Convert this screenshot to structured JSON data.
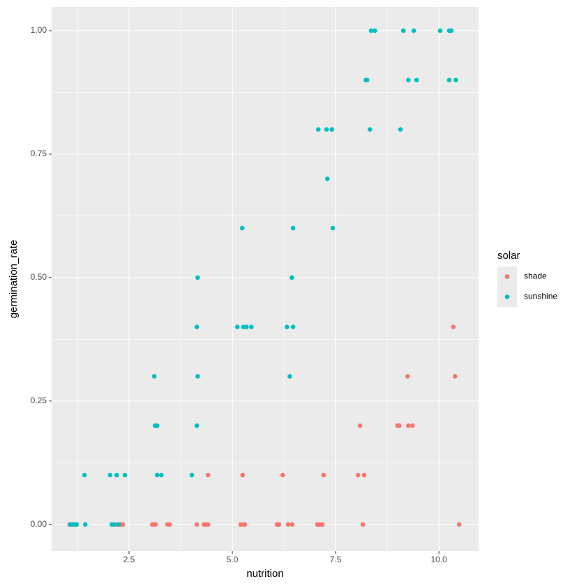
{
  "chart_data": {
    "type": "scatter",
    "x_label": "nutrition",
    "y_label": "germination_rate",
    "xlim": [
      0.625,
      10.96
    ],
    "ylim": [
      -0.054,
      1.048
    ],
    "xticks": [
      2.5,
      {
        "value": 5.0,
        "label": "5.0"
      },
      7.5,
      {
        "value": 10.0,
        "label": "10.0"
      }
    ],
    "yticks": [
      {
        "value": 0,
        "label": "0.00"
      },
      {
        "value": 0.25,
        "label": "0.25"
      },
      {
        "value": 0.5,
        "label": "0.50"
      },
      {
        "value": 0.75,
        "label": "0.75"
      },
      {
        "value": 1,
        "label": "1.00"
      }
    ],
    "grid": true,
    "legend_title": "solar",
    "legend_position": "right",
    "series": [
      {
        "name": "shade",
        "color": "#F8766D",
        "x": [
          10.35,
          9.24,
          10.39,
          8.09,
          9.0,
          9.04,
          9.26,
          9.36,
          4.41,
          5.25,
          6.22,
          7.21,
          8.04,
          8.19,
          1.06,
          1.17,
          2.2,
          2.31,
          2.35,
          3.06,
          3.11,
          3.14,
          3.43,
          3.48,
          4.14,
          4.31,
          4.36,
          4.41,
          5.2,
          5.27,
          5.3,
          6.08,
          6.13,
          6.35,
          6.45,
          7.06,
          7.11,
          7.18,
          8.16,
          10.49
        ],
        "values": [
          0.4,
          0.3,
          0.3,
          0.2,
          0.2,
          0.2,
          0.2,
          0.2,
          0.1,
          0.1,
          0.1,
          0.1,
          0.1,
          0.1,
          0,
          0,
          0,
          0,
          0,
          0,
          0,
          0,
          0,
          0,
          0,
          0,
          0,
          0,
          0,
          0,
          0,
          0,
          0,
          0,
          0,
          0,
          0,
          0,
          0,
          0
        ]
      },
      {
        "name": "sunshine",
        "color": "#00BFC4",
        "x": [
          8.36,
          8.45,
          9.14,
          9.39,
          10.03,
          10.25,
          10.3,
          8.23,
          8.26,
          9.26,
          9.46,
          10.25,
          10.41,
          7.08,
          7.28,
          7.41,
          8.33,
          9.07,
          7.3,
          5.24,
          6.47,
          7.43,
          4.16,
          6.44,
          4.14,
          5.12,
          5.27,
          5.34,
          5.46,
          6.32,
          6.47,
          3.11,
          4.16,
          6.39,
          3.13,
          3.18,
          4.14,
          1.42,
          2.04,
          2.2,
          2.4,
          3.18,
          3.28,
          4.02,
          1.08,
          1.13,
          1.2,
          1.23,
          1.44,
          2.08,
          2.13,
          2.25
        ],
        "values": [
          1,
          1,
          1,
          1,
          1,
          1,
          1,
          0.9,
          0.9,
          0.9,
          0.9,
          0.9,
          0.9,
          0.8,
          0.8,
          0.8,
          0.8,
          0.8,
          0.7,
          0.6,
          0.6,
          0.6,
          0.5,
          0.5,
          0.4,
          0.4,
          0.4,
          0.4,
          0.4,
          0.4,
          0.4,
          0.3,
          0.3,
          0.3,
          0.2,
          0.2,
          0.2,
          0.1,
          0.1,
          0.1,
          0.1,
          0.1,
          0.1,
          0.1,
          0,
          0,
          0,
          0,
          0,
          0,
          0,
          0
        ]
      }
    ]
  }
}
